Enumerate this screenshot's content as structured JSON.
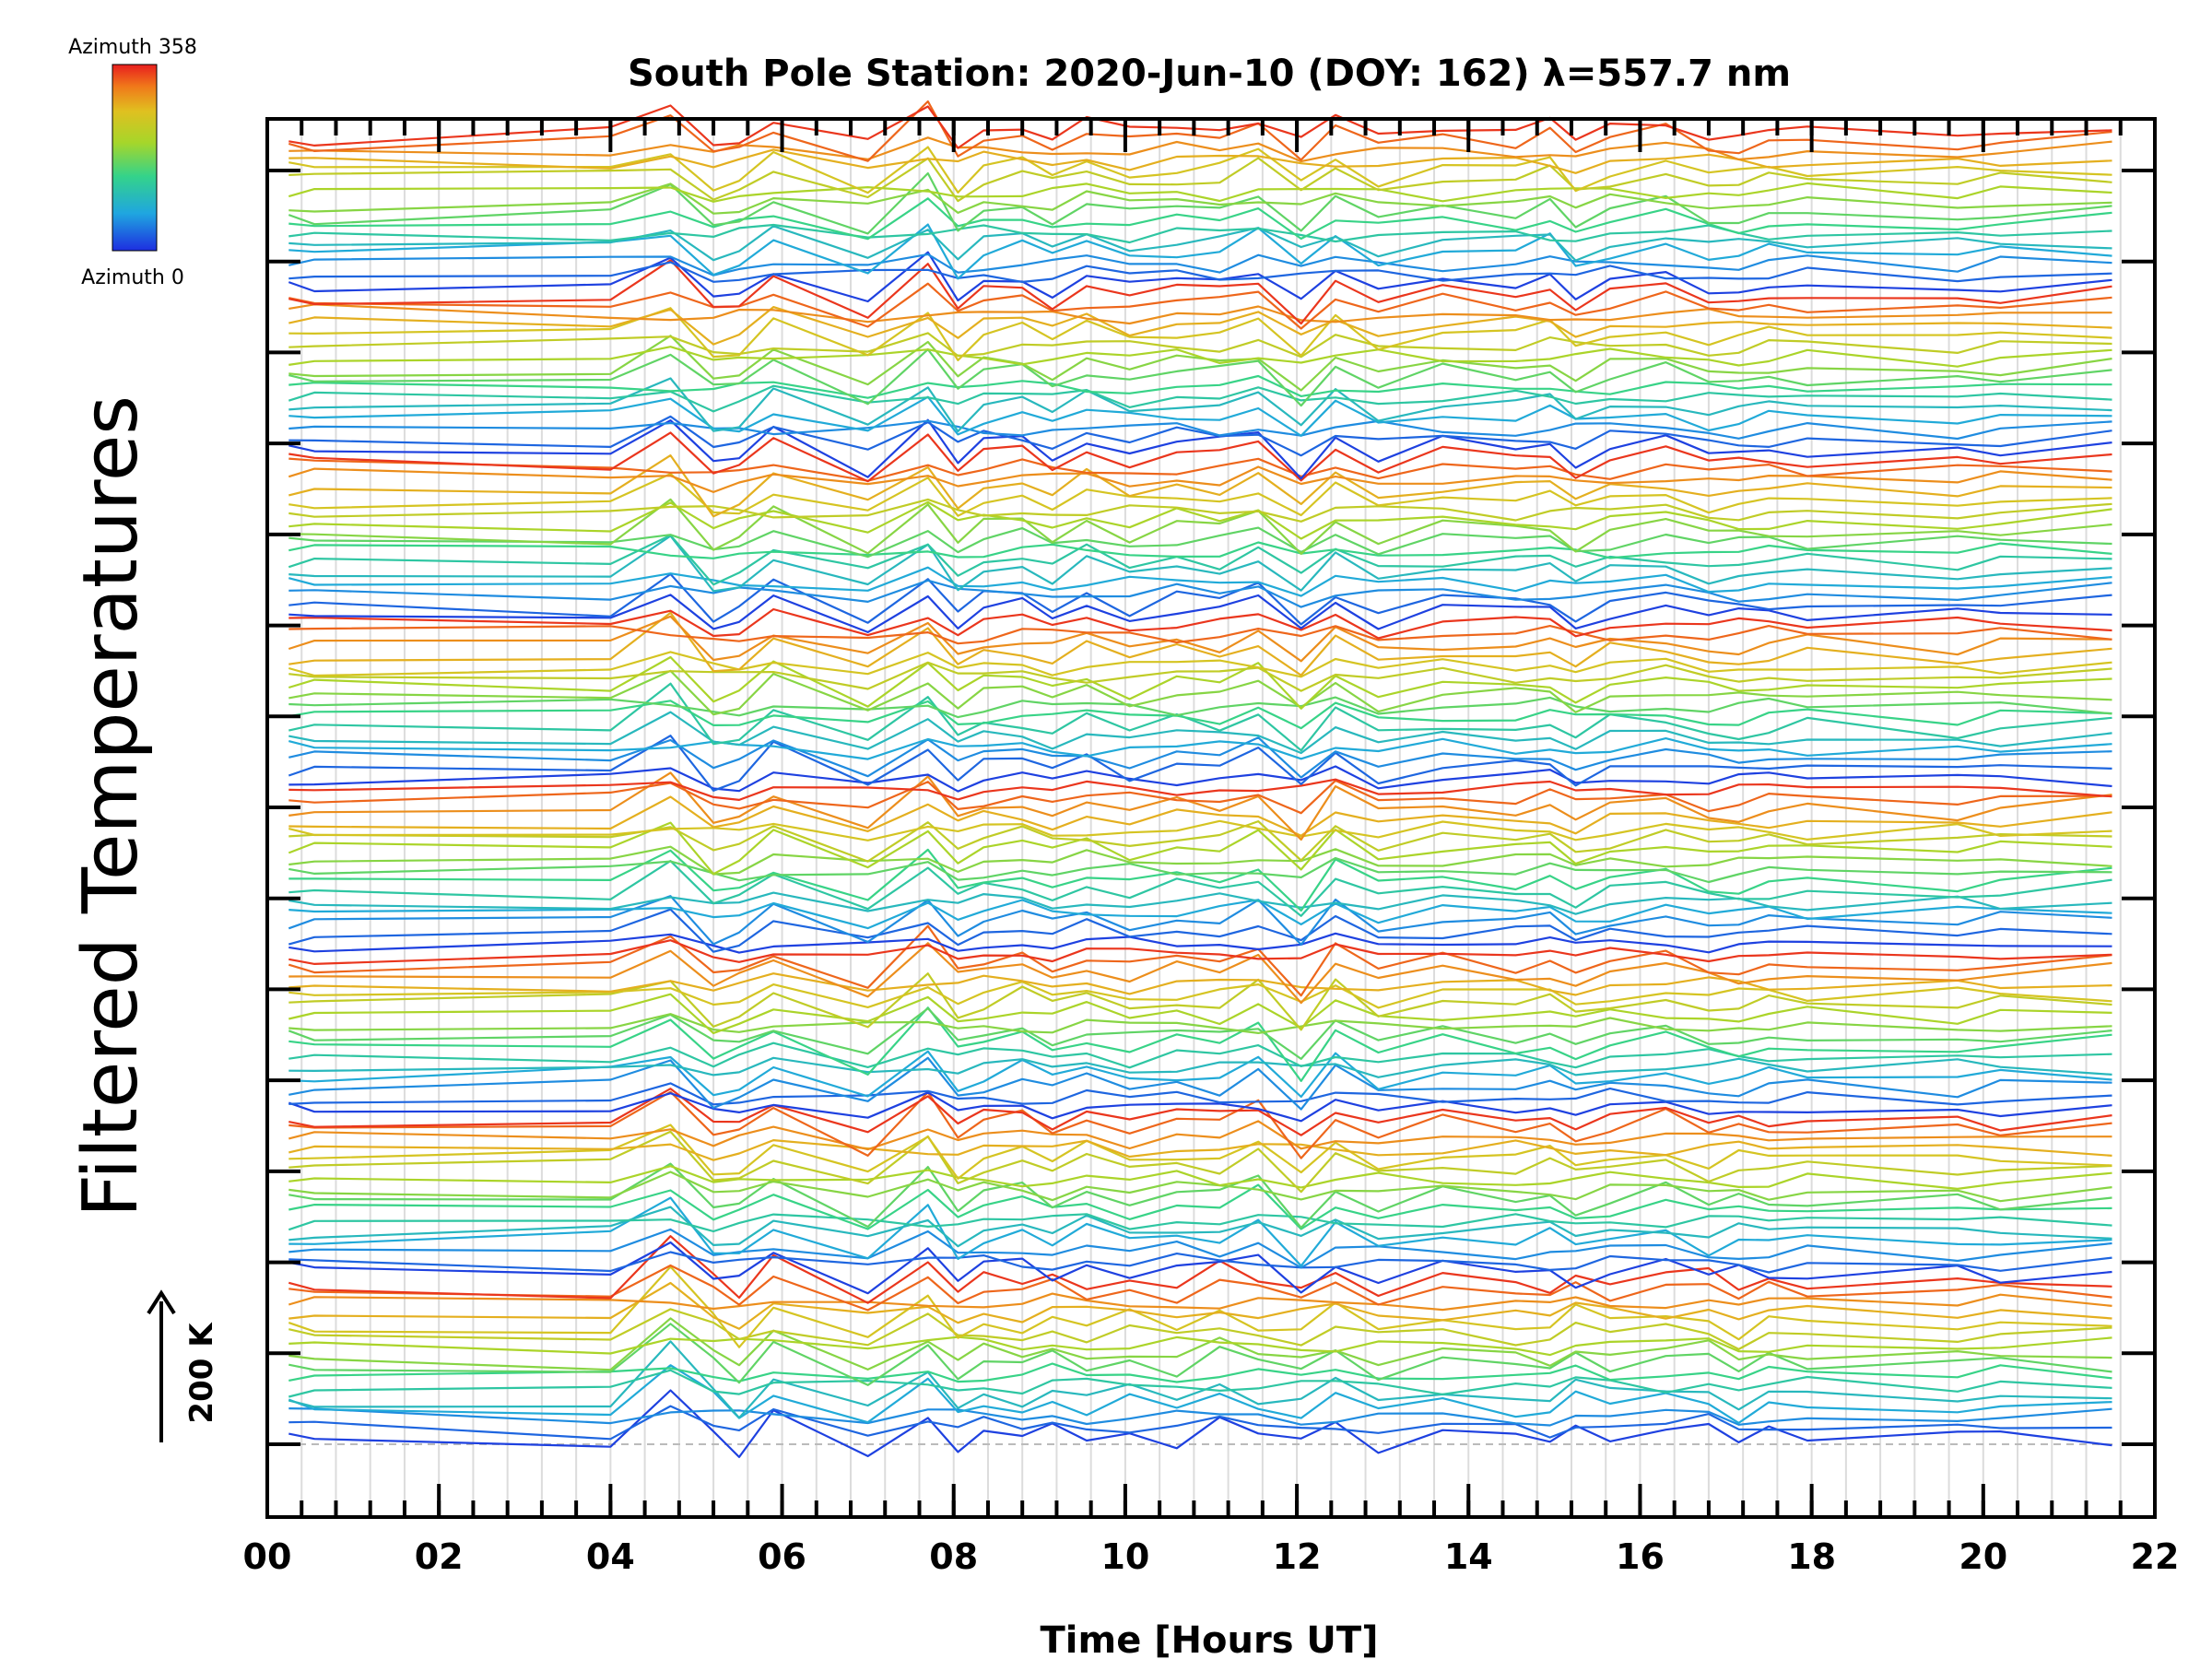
{
  "chart_data": {
    "type": "line",
    "title": "South Pole Station: 2020-Jun-10 (DOY: 162) λ=557.7 nm",
    "xlabel": "Time [Hours UT]",
    "ylabel": "Filtered Temperatures",
    "xlim": [
      0,
      22
    ],
    "x_ticks": [
      0,
      2,
      4,
      6,
      8,
      10,
      12,
      14,
      16,
      18,
      20,
      22
    ],
    "x_tick_labels": [
      "00",
      "02",
      "04",
      "06",
      "08",
      "10",
      "12",
      "14",
      "16",
      "18",
      "20",
      "22"
    ],
    "y_stacked_offsets": true,
    "y_major_ticks": 15,
    "scale_bar": {
      "label": "200 K",
      "value_kelvin": 200
    },
    "color_legend": {
      "top_label": "Azimuth 358",
      "bottom_label": "Azimuth 0",
      "colormap": "rainbow",
      "min": 0,
      "max": 358
    },
    "grid": true,
    "sample_times_hours": [
      0.25,
      0.55,
      4.0,
      4.7,
      5.2,
      5.5,
      5.9,
      7.0,
      7.7,
      8.05,
      8.35,
      8.8,
      9.15,
      9.55,
      10.05,
      10.6,
      11.1,
      11.55,
      12.05,
      12.45,
      12.95,
      13.7,
      14.55,
      14.95,
      15.25,
      15.65,
      16.3,
      16.8,
      17.15,
      17.5,
      17.95,
      19.7,
      20.2,
      21.5
    ],
    "groups": 8,
    "series_per_group": 16,
    "group_event_response_K": [
      [
        0.0,
        -4.0,
        -14.0,
        70.0,
        12.0,
        -22.0,
        30.0,
        -20.0,
        34.0,
        -12.0,
        6.0,
        -8.0,
        18.0,
        -4.0,
        10.0,
        -5.0,
        20.0,
        2.0,
        -6.0,
        20.0,
        -8.0,
        6.0,
        -3.0,
        -10.0,
        24.0,
        4.0,
        12.0,
        16.0,
        -18.0,
        10.0,
        4.0,
        -4.0,
        8.0,
        0.0
      ],
      [
        0.0,
        4.0,
        6.0,
        58.0,
        -18.0,
        -8.0,
        28.0,
        -24.0,
        44.0,
        -16.0,
        10.0,
        18.0,
        -4.0,
        24.0,
        -6.0,
        14.0,
        4.0,
        34.0,
        -30.0,
        16.0,
        -8.0,
        8.0,
        2.0,
        10.0,
        -12.0,
        4.0,
        16.0,
        -6.0,
        8.0,
        -4.0,
        6.0,
        2.0,
        -6.0,
        4.0
      ],
      [
        0.0,
        -2.0,
        4.0,
        42.0,
        -26.0,
        -12.0,
        22.0,
        -30.0,
        46.0,
        -10.0,
        4.0,
        20.0,
        -4.0,
        16.0,
        -6.0,
        10.0,
        2.0,
        28.0,
        -36.0,
        30.0,
        -12.0,
        10.0,
        0.0,
        6.0,
        -16.0,
        4.0,
        10.0,
        -4.0,
        -6.0,
        2.0,
        0.0,
        -4.0,
        2.0,
        6.0
      ],
      [
        0.0,
        2.0,
        2.0,
        46.0,
        -22.0,
        -14.0,
        26.0,
        -28.0,
        38.0,
        -16.0,
        6.0,
        14.0,
        -6.0,
        12.0,
        -4.0,
        8.0,
        6.0,
        22.0,
        -34.0,
        34.0,
        -10.0,
        8.0,
        2.0,
        12.0,
        -20.0,
        2.0,
        14.0,
        -8.0,
        -4.0,
        4.0,
        2.0,
        -2.0,
        4.0,
        10.0
      ],
      [
        0.0,
        4.0,
        0.0,
        50.0,
        -20.0,
        -16.0,
        28.0,
        -26.0,
        40.0,
        -14.0,
        8.0,
        12.0,
        -4.0,
        14.0,
        -6.0,
        10.0,
        4.0,
        26.0,
        -32.0,
        28.0,
        -14.0,
        6.0,
        0.0,
        8.0,
        -18.0,
        6.0,
        12.0,
        -6.0,
        -8.0,
        0.0,
        4.0,
        -4.0,
        2.0,
        8.0
      ],
      [
        0.0,
        2.0,
        -6.0,
        44.0,
        -24.0,
        -10.0,
        24.0,
        -24.0,
        42.0,
        -18.0,
        6.0,
        16.0,
        -8.0,
        18.0,
        -6.0,
        12.0,
        2.0,
        30.0,
        -30.0,
        22.0,
        -10.0,
        10.0,
        4.0,
        10.0,
        -14.0,
        4.0,
        16.0,
        -6.0,
        -4.0,
        2.0,
        2.0,
        -6.0,
        4.0,
        12.0
      ],
      [
        0.0,
        2.0,
        2.0,
        40.0,
        -22.0,
        -14.0,
        26.0,
        -28.0,
        38.0,
        -20.0,
        8.0,
        14.0,
        -6.0,
        16.0,
        -4.0,
        10.0,
        6.0,
        26.0,
        -34.0,
        20.0,
        -10.0,
        8.0,
        2.0,
        12.0,
        -14.0,
        4.0,
        12.0,
        -6.0,
        -6.0,
        4.0,
        2.0,
        -4.0,
        2.0,
        10.0
      ],
      [
        0.0,
        -2.0,
        6.0,
        34.0,
        -26.0,
        -10.0,
        22.0,
        -24.0,
        44.0,
        -24.0,
        6.0,
        10.0,
        -6.0,
        18.0,
        -4.0,
        8.0,
        4.0,
        30.0,
        -16.0,
        18.0,
        -8.0,
        4.0,
        2.0,
        18.0,
        -20.0,
        4.0,
        16.0,
        -4.0,
        -8.0,
        2.0,
        4.0,
        -6.0,
        2.0,
        6.0
      ]
    ]
  }
}
